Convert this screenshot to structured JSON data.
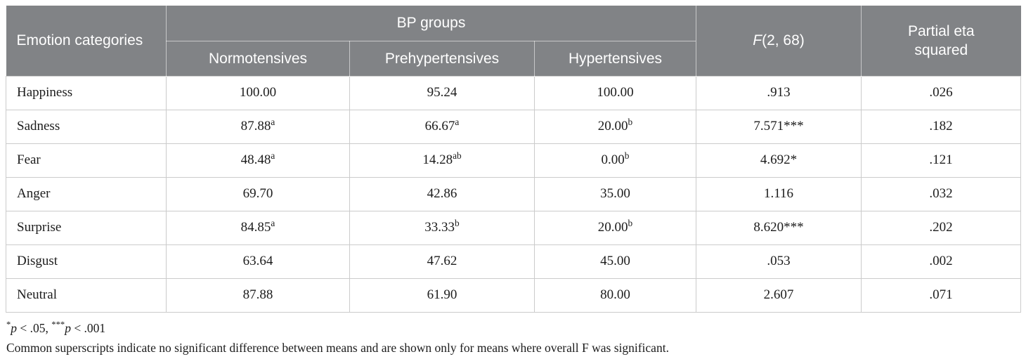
{
  "colors": {
    "header_bg": "#818386",
    "header_text": "#ffffff",
    "grid_line": "#cbcbcb",
    "body_text": "#1c1c1c",
    "page_bg": "#ffffff"
  },
  "table": {
    "header": {
      "emotion": "Emotion categories",
      "bp_groups": "BP groups",
      "subcolumns": [
        "Normotensives",
        "Prehypertensives",
        "Hypertensives"
      ],
      "f_prefix": "F",
      "f_suffix": "(2, 68)",
      "partial_eta": "Partial eta squared"
    },
    "rows": [
      {
        "category": "Happiness",
        "values": [
          {
            "v": "100.00",
            "sup": ""
          },
          {
            "v": "95.24",
            "sup": ""
          },
          {
            "v": "100.00",
            "sup": ""
          }
        ],
        "f": ".913",
        "eta": ".026"
      },
      {
        "category": "Sadness",
        "values": [
          {
            "v": "87.88",
            "sup": "a"
          },
          {
            "v": "66.67",
            "sup": "a"
          },
          {
            "v": "20.00",
            "sup": "b"
          }
        ],
        "f": "7.571***",
        "eta": ".182"
      },
      {
        "category": "Fear",
        "values": [
          {
            "v": "48.48",
            "sup": "a"
          },
          {
            "v": "14.28",
            "sup": "ab"
          },
          {
            "v": "0.00",
            "sup": "b"
          }
        ],
        "f": "4.692*",
        "eta": ".121"
      },
      {
        "category": "Anger",
        "values": [
          {
            "v": "69.70",
            "sup": ""
          },
          {
            "v": "42.86",
            "sup": ""
          },
          {
            "v": "35.00",
            "sup": ""
          }
        ],
        "f": "1.116",
        "eta": ".032"
      },
      {
        "category": "Surprise",
        "values": [
          {
            "v": "84.85",
            "sup": "a"
          },
          {
            "v": "33.33",
            "sup": "b"
          },
          {
            "v": "20.00",
            "sup": "b"
          }
        ],
        "f": "8.620***",
        "eta": ".202"
      },
      {
        "category": "Disgust",
        "values": [
          {
            "v": "63.64",
            "sup": ""
          },
          {
            "v": "47.62",
            "sup": ""
          },
          {
            "v": "45.00",
            "sup": ""
          }
        ],
        "f": ".053",
        "eta": ".002"
      },
      {
        "category": "Neutral",
        "values": [
          {
            "v": "87.88",
            "sup": ""
          },
          {
            "v": "61.90",
            "sup": ""
          },
          {
            "v": "80.00",
            "sup": ""
          }
        ],
        "f": "2.607",
        "eta": ".071"
      }
    ],
    "footnotes": {
      "significance_segments": [
        {
          "style": "sup",
          "text": "*"
        },
        {
          "style": "italic",
          "text": "p"
        },
        {
          "style": "normal",
          "text": " < .05, "
        },
        {
          "style": "sup",
          "text": "***"
        },
        {
          "style": "italic",
          "text": "p"
        },
        {
          "style": "normal",
          "text": " < .001"
        }
      ],
      "superscript_note": "Common superscripts indicate no significant difference between means and are shown only for means where overall F was significant."
    }
  }
}
